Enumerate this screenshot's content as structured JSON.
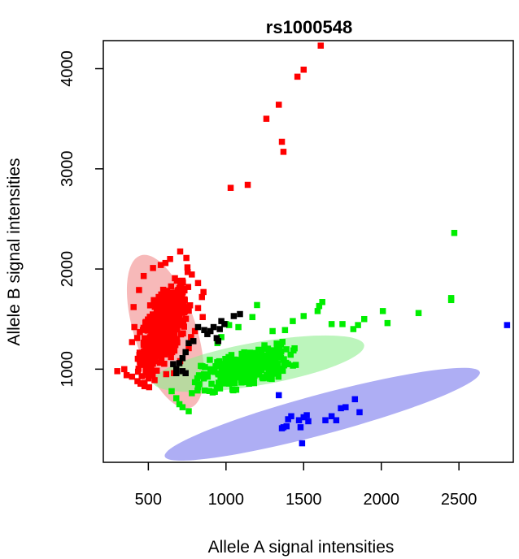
{
  "chart_data": {
    "type": "scatter",
    "title": "rs1000548",
    "xlabel": "Allele A signal intensities",
    "ylabel": "Allele B signal intensities",
    "xlim": [
      210,
      2850
    ],
    "ylim": [
      70,
      4280
    ],
    "xticks": [
      500,
      1000,
      1500,
      2000,
      2500
    ],
    "yticks": [
      1000,
      2000,
      3000,
      4000
    ],
    "grid": false,
    "ellipses": [
      {
        "name": "cluster-BB",
        "color": "#f08080",
        "opacity": 0.55,
        "cx": 610,
        "cy": 1375,
        "rx": 200,
        "ry": 800,
        "angle_deg": 18
      },
      {
        "name": "cluster-AB",
        "color": "#90ee90",
        "opacity": 0.6,
        "cx": 1210,
        "cy": 1055,
        "rx": 690,
        "ry": 215,
        "angle_deg": 10
      },
      {
        "name": "cluster-AA",
        "color": "#8c8cf0",
        "opacity": 0.7,
        "cx": 1620,
        "cy": 550,
        "rx": 1050,
        "ry": 200,
        "angle_deg": 15
      }
    ],
    "series": [
      {
        "color": "#ff0000",
        "clusters": [
          {
            "cx": 600,
            "cy": 1420,
            "sx": 75,
            "sy": 210,
            "rho": 0.6,
            "n": 650
          }
        ],
        "points": [
          [
            1610,
            4230
          ],
          [
            1460,
            3920
          ],
          [
            1500,
            3990
          ],
          [
            1340,
            3640
          ],
          [
            1360,
            3270
          ],
          [
            1370,
            3170
          ],
          [
            1260,
            3500
          ],
          [
            1140,
            2840
          ],
          [
            1030,
            2810
          ],
          [
            300,
            980
          ],
          [
            345,
            1000
          ],
          [
            360,
            940
          ],
          [
            395,
            925
          ],
          [
            430,
            880
          ],
          [
            450,
            855
          ],
          [
            475,
            830
          ],
          [
            505,
            820
          ],
          [
            540,
            890
          ],
          [
            615,
            950
          ],
          [
            665,
            960
          ],
          [
            705,
            1080
          ],
          [
            760,
            1210
          ],
          [
            775,
            1320
          ],
          [
            800,
            1380
          ],
          [
            820,
            1610
          ],
          [
            845,
            1720
          ],
          [
            855,
            1770
          ],
          [
            850,
            1520
          ],
          [
            820,
            1860
          ],
          [
            780,
            1945
          ],
          [
            745,
            2110
          ],
          [
            705,
            2175
          ],
          [
            640,
            2100
          ],
          [
            610,
            2060
          ],
          [
            580,
            2040
          ],
          [
            530,
            2010
          ],
          [
            470,
            1930
          ],
          [
            440,
            1790
          ],
          [
            405,
            1620
          ],
          [
            410,
            1420
          ],
          [
            395,
            1270
          ],
          [
            480,
            1210
          ]
        ]
      },
      {
        "color": "#00ee00",
        "clusters": [
          {
            "cx": 1130,
            "cy": 1010,
            "sx": 140,
            "sy": 100,
            "rho": 0.5,
            "n": 320
          }
        ],
        "points": [
          [
            2470,
            2360
          ],
          [
            2450,
            1710
          ],
          [
            2450,
            1690
          ],
          [
            2240,
            1560
          ],
          [
            2040,
            1460
          ],
          [
            2010,
            1580
          ],
          [
            1890,
            1500
          ],
          [
            1850,
            1440
          ],
          [
            1820,
            1400
          ],
          [
            1750,
            1450
          ],
          [
            1680,
            1450
          ],
          [
            1620,
            1670
          ],
          [
            1600,
            1630
          ],
          [
            1590,
            1580
          ],
          [
            1500,
            1530
          ],
          [
            1430,
            1480
          ],
          [
            1380,
            1390
          ],
          [
            1300,
            1380
          ],
          [
            1200,
            1640
          ],
          [
            1170,
            1520
          ],
          [
            1080,
            1420
          ],
          [
            1020,
            1440
          ],
          [
            1000,
            1450
          ],
          [
            970,
            1320
          ],
          [
            945,
            1260
          ],
          [
            900,
            1000
          ],
          [
            820,
            820
          ],
          [
            780,
            760
          ],
          [
            720,
            620
          ],
          [
            760,
            580
          ],
          [
            700,
            650
          ],
          [
            680,
            710
          ],
          [
            650,
            780
          ],
          [
            800,
            870
          ],
          [
            850,
            930
          ]
        ]
      },
      {
        "color": "#000000",
        "clusters": [],
        "points": [
          [
            1090,
            1550
          ],
          [
            1050,
            1530
          ],
          [
            990,
            1450
          ],
          [
            970,
            1480
          ],
          [
            960,
            1400
          ],
          [
            950,
            1280
          ],
          [
            940,
            1310
          ],
          [
            920,
            1420
          ],
          [
            900,
            1380
          ],
          [
            880,
            1350
          ],
          [
            860,
            1390
          ],
          [
            820,
            1420
          ],
          [
            790,
            1280
          ],
          [
            760,
            1260
          ],
          [
            740,
            1170
          ],
          [
            720,
            1110
          ],
          [
            700,
            1060
          ],
          [
            680,
            1000
          ],
          [
            720,
            980
          ],
          [
            740,
            960
          ],
          [
            680,
            960
          ],
          [
            660,
            1050
          ]
        ]
      },
      {
        "color": "#0000ff",
        "clusters": [],
        "points": [
          [
            2810,
            1440
          ],
          [
            1830,
            700
          ],
          [
            1860,
            570
          ],
          [
            1770,
            620
          ],
          [
            1740,
            610
          ],
          [
            1680,
            530
          ],
          [
            1710,
            490
          ],
          [
            1640,
            490
          ],
          [
            1530,
            480
          ],
          [
            1500,
            520
          ],
          [
            1470,
            490
          ],
          [
            1480,
            420
          ],
          [
            1490,
            260
          ],
          [
            1420,
            530
          ],
          [
            1400,
            500
          ],
          [
            1390,
            430
          ],
          [
            1370,
            420
          ],
          [
            1360,
            410
          ],
          [
            1340,
            740
          ],
          [
            1520,
            540
          ]
        ]
      }
    ]
  }
}
